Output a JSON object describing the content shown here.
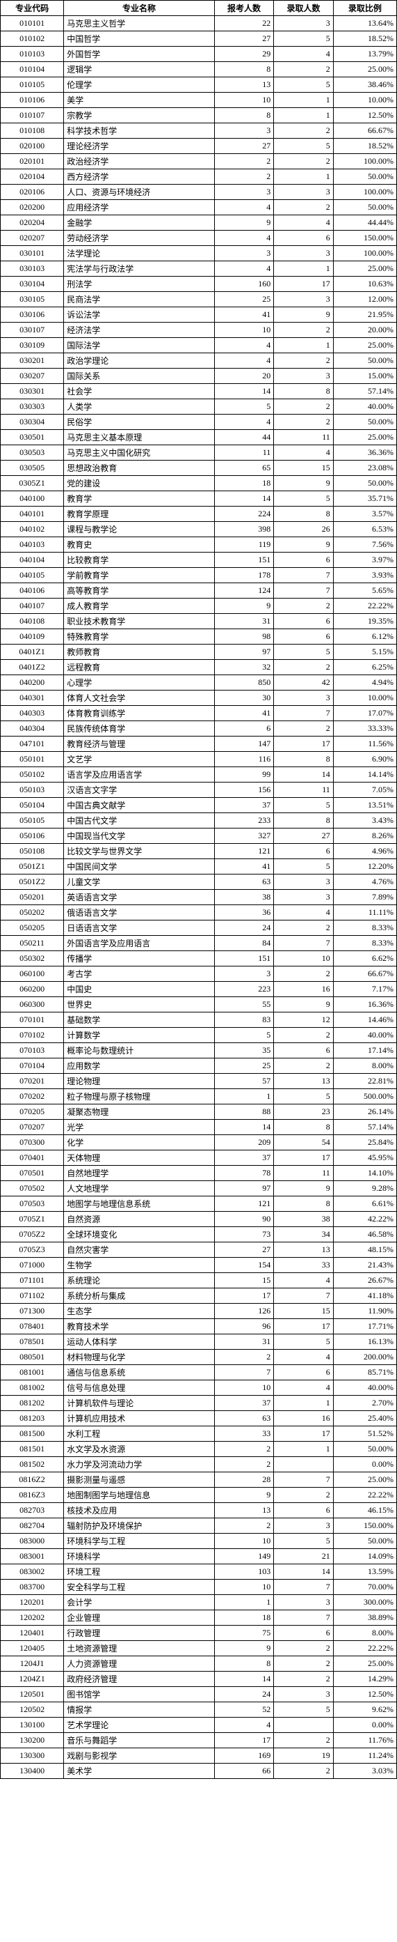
{
  "columns": [
    "专业代码",
    "专业名称",
    "报考人数",
    "录取人数",
    "录取比例"
  ],
  "col_align": [
    "center",
    "left",
    "right",
    "right",
    "right"
  ],
  "header_fontweight": "bold",
  "border_color": "#000000",
  "background_color": "#ffffff",
  "text_color": "#000000",
  "font_family": "SimSun",
  "font_size_pt": 9,
  "rows": [
    [
      "010101",
      "马克思主义哲学",
      "22",
      "3",
      "13.64%"
    ],
    [
      "010102",
      "中国哲学",
      "27",
      "5",
      "18.52%"
    ],
    [
      "010103",
      "外国哲学",
      "29",
      "4",
      "13.79%"
    ],
    [
      "010104",
      "逻辑学",
      "8",
      "2",
      "25.00%"
    ],
    [
      "010105",
      "伦理学",
      "13",
      "5",
      "38.46%"
    ],
    [
      "010106",
      "美学",
      "10",
      "1",
      "10.00%"
    ],
    [
      "010107",
      "宗教学",
      "8",
      "1",
      "12.50%"
    ],
    [
      "010108",
      "科学技术哲学",
      "3",
      "2",
      "66.67%"
    ],
    [
      "020100",
      "理论经济学",
      "27",
      "5",
      "18.52%"
    ],
    [
      "020101",
      "政治经济学",
      "2",
      "2",
      "100.00%"
    ],
    [
      "020104",
      "西方经济学",
      "2",
      "1",
      "50.00%"
    ],
    [
      "020106",
      "人口、资源与环境经济",
      "3",
      "3",
      "100.00%"
    ],
    [
      "020200",
      "应用经济学",
      "4",
      "2",
      "50.00%"
    ],
    [
      "020204",
      "金融学",
      "9",
      "4",
      "44.44%"
    ],
    [
      "020207",
      "劳动经济学",
      "4",
      "6",
      "150.00%"
    ],
    [
      "030101",
      "法学理论",
      "3",
      "3",
      "100.00%"
    ],
    [
      "030103",
      "宪法学与行政法学",
      "4",
      "1",
      "25.00%"
    ],
    [
      "030104",
      "刑法学",
      "160",
      "17",
      "10.63%"
    ],
    [
      "030105",
      "民商法学",
      "25",
      "3",
      "12.00%"
    ],
    [
      "030106",
      "诉讼法学",
      "41",
      "9",
      "21.95%"
    ],
    [
      "030107",
      "经济法学",
      "10",
      "2",
      "20.00%"
    ],
    [
      "030109",
      "国际法学",
      "4",
      "1",
      "25.00%"
    ],
    [
      "030201",
      "政治学理论",
      "4",
      "2",
      "50.00%"
    ],
    [
      "030207",
      "国际关系",
      "20",
      "3",
      "15.00%"
    ],
    [
      "030301",
      "社会学",
      "14",
      "8",
      "57.14%"
    ],
    [
      "030303",
      "人类学",
      "5",
      "2",
      "40.00%"
    ],
    [
      "030304",
      "民俗学",
      "4",
      "2",
      "50.00%"
    ],
    [
      "030501",
      "马克思主义基本原理",
      "44",
      "11",
      "25.00%"
    ],
    [
      "030503",
      "马克思主义中国化研究",
      "11",
      "4",
      "36.36%"
    ],
    [
      "030505",
      "思想政治教育",
      "65",
      "15",
      "23.08%"
    ],
    [
      "0305Z1",
      "党的建设",
      "18",
      "9",
      "50.00%"
    ],
    [
      "040100",
      "教育学",
      "14",
      "5",
      "35.71%"
    ],
    [
      "040101",
      "教育学原理",
      "224",
      "8",
      "3.57%"
    ],
    [
      "040102",
      "课程与教学论",
      "398",
      "26",
      "6.53%"
    ],
    [
      "040103",
      "教育史",
      "119",
      "9",
      "7.56%"
    ],
    [
      "040104",
      "比较教育学",
      "151",
      "6",
      "3.97%"
    ],
    [
      "040105",
      "学前教育学",
      "178",
      "7",
      "3.93%"
    ],
    [
      "040106",
      "高等教育学",
      "124",
      "7",
      "5.65%"
    ],
    [
      "040107",
      "成人教育学",
      "9",
      "2",
      "22.22%"
    ],
    [
      "040108",
      "职业技术教育学",
      "31",
      "6",
      "19.35%"
    ],
    [
      "040109",
      "特殊教育学",
      "98",
      "6",
      "6.12%"
    ],
    [
      "0401Z1",
      "教师教育",
      "97",
      "5",
      "5.15%"
    ],
    [
      "0401Z2",
      "远程教育",
      "32",
      "2",
      "6.25%"
    ],
    [
      "040200",
      "心理学",
      "850",
      "42",
      "4.94%"
    ],
    [
      "040301",
      "体育人文社会学",
      "30",
      "3",
      "10.00%"
    ],
    [
      "040303",
      "体育教育训练学",
      "41",
      "7",
      "17.07%"
    ],
    [
      "040304",
      "民族传统体育学",
      "6",
      "2",
      "33.33%"
    ],
    [
      "047101",
      "教育经济与管理",
      "147",
      "17",
      "11.56%"
    ],
    [
      "050101",
      "文艺学",
      "116",
      "8",
      "6.90%"
    ],
    [
      "050102",
      "语言学及应用语言学",
      "99",
      "14",
      "14.14%"
    ],
    [
      "050103",
      "汉语言文字学",
      "156",
      "11",
      "7.05%"
    ],
    [
      "050104",
      "中国古典文献学",
      "37",
      "5",
      "13.51%"
    ],
    [
      "050105",
      "中国古代文学",
      "233",
      "8",
      "3.43%"
    ],
    [
      "050106",
      "中国现当代文学",
      "327",
      "27",
      "8.26%"
    ],
    [
      "050108",
      "比较文学与世界文学",
      "121",
      "6",
      "4.96%"
    ],
    [
      "0501Z1",
      "中国民间文学",
      "41",
      "5",
      "12.20%"
    ],
    [
      "0501Z2",
      "儿童文学",
      "63",
      "3",
      "4.76%"
    ],
    [
      "050201",
      "英语语言文学",
      "38",
      "3",
      "7.89%"
    ],
    [
      "050202",
      "俄语语言文学",
      "36",
      "4",
      "11.11%"
    ],
    [
      "050205",
      "日语语言文学",
      "24",
      "2",
      "8.33%"
    ],
    [
      "050211",
      "外国语言学及应用语言",
      "84",
      "7",
      "8.33%"
    ],
    [
      "050302",
      "传播学",
      "151",
      "10",
      "6.62%"
    ],
    [
      "060100",
      "考古学",
      "3",
      "2",
      "66.67%"
    ],
    [
      "060200",
      "中国史",
      "223",
      "16",
      "7.17%"
    ],
    [
      "060300",
      "世界史",
      "55",
      "9",
      "16.36%"
    ],
    [
      "070101",
      "基础数学",
      "83",
      "12",
      "14.46%"
    ],
    [
      "070102",
      "计算数学",
      "5",
      "2",
      "40.00%"
    ],
    [
      "070103",
      "概率论与数理统计",
      "35",
      "6",
      "17.14%"
    ],
    [
      "070104",
      "应用数学",
      "25",
      "2",
      "8.00%"
    ],
    [
      "070201",
      "理论物理",
      "57",
      "13",
      "22.81%"
    ],
    [
      "070202",
      "粒子物理与原子核物理",
      "1",
      "5",
      "500.00%"
    ],
    [
      "070205",
      "凝聚态物理",
      "88",
      "23",
      "26.14%"
    ],
    [
      "070207",
      "光学",
      "14",
      "8",
      "57.14%"
    ],
    [
      "070300",
      "化学",
      "209",
      "54",
      "25.84%"
    ],
    [
      "070401",
      "天体物理",
      "37",
      "17",
      "45.95%"
    ],
    [
      "070501",
      "自然地理学",
      "78",
      "11",
      "14.10%"
    ],
    [
      "070502",
      "人文地理学",
      "97",
      "9",
      "9.28%"
    ],
    [
      "070503",
      "地图学与地理信息系统",
      "121",
      "8",
      "6.61%"
    ],
    [
      "0705Z1",
      "自然资源",
      "90",
      "38",
      "42.22%"
    ],
    [
      "0705Z2",
      "全球环境变化",
      "73",
      "34",
      "46.58%"
    ],
    [
      "0705Z3",
      "自然灾害学",
      "27",
      "13",
      "48.15%"
    ],
    [
      "071000",
      "生物学",
      "154",
      "33",
      "21.43%"
    ],
    [
      "071101",
      "系统理论",
      "15",
      "4",
      "26.67%"
    ],
    [
      "071102",
      "系统分析与集成",
      "17",
      "7",
      "41.18%"
    ],
    [
      "071300",
      "生态学",
      "126",
      "15",
      "11.90%"
    ],
    [
      "078401",
      "教育技术学",
      "96",
      "17",
      "17.71%"
    ],
    [
      "078501",
      "运动人体科学",
      "31",
      "5",
      "16.13%"
    ],
    [
      "080501",
      "材料物理与化学",
      "2",
      "4",
      "200.00%"
    ],
    [
      "081001",
      "通信与信息系统",
      "7",
      "6",
      "85.71%"
    ],
    [
      "081002",
      "信号与信息处理",
      "10",
      "4",
      "40.00%"
    ],
    [
      "081202",
      "计算机软件与理论",
      "37",
      "1",
      "2.70%"
    ],
    [
      "081203",
      "计算机应用技术",
      "63",
      "16",
      "25.40%"
    ],
    [
      "081500",
      "水利工程",
      "33",
      "17",
      "51.52%"
    ],
    [
      "081501",
      "水文学及水资源",
      "2",
      "1",
      "50.00%"
    ],
    [
      "081502",
      "水力学及河流动力学",
      "2",
      "",
      "0.00%"
    ],
    [
      "0816Z2",
      "摄影测量与遥感",
      "28",
      "7",
      "25.00%"
    ],
    [
      "0816Z3",
      "地图制图学与地理信息",
      "9",
      "2",
      "22.22%"
    ],
    [
      "082703",
      "核技术及应用",
      "13",
      "6",
      "46.15%"
    ],
    [
      "082704",
      "辐射防护及环境保护",
      "2",
      "3",
      "150.00%"
    ],
    [
      "083000",
      "环境科学与工程",
      "10",
      "5",
      "50.00%"
    ],
    [
      "083001",
      "环境科学",
      "149",
      "21",
      "14.09%"
    ],
    [
      "083002",
      "环境工程",
      "103",
      "14",
      "13.59%"
    ],
    [
      "083700",
      "安全科学与工程",
      "10",
      "7",
      "70.00%"
    ],
    [
      "120201",
      "会计学",
      "1",
      "3",
      "300.00%"
    ],
    [
      "120202",
      "企业管理",
      "18",
      "7",
      "38.89%"
    ],
    [
      "120401",
      "行政管理",
      "75",
      "6",
      "8.00%"
    ],
    [
      "120405",
      "土地资源管理",
      "9",
      "2",
      "22.22%"
    ],
    [
      "1204J1",
      "人力资源管理",
      "8",
      "2",
      "25.00%"
    ],
    [
      "1204Z1",
      "政府经济管理",
      "14",
      "2",
      "14.29%"
    ],
    [
      "120501",
      "图书馆学",
      "24",
      "3",
      "12.50%"
    ],
    [
      "120502",
      "情报学",
      "52",
      "5",
      "9.62%"
    ],
    [
      "130100",
      "艺术学理论",
      "4",
      "",
      "0.00%"
    ],
    [
      "130200",
      "音乐与舞蹈学",
      "17",
      "2",
      "11.76%"
    ],
    [
      "130300",
      "戏剧与影视学",
      "169",
      "19",
      "11.24%"
    ],
    [
      "130400",
      "美术学",
      "66",
      "2",
      "3.03%"
    ]
  ]
}
